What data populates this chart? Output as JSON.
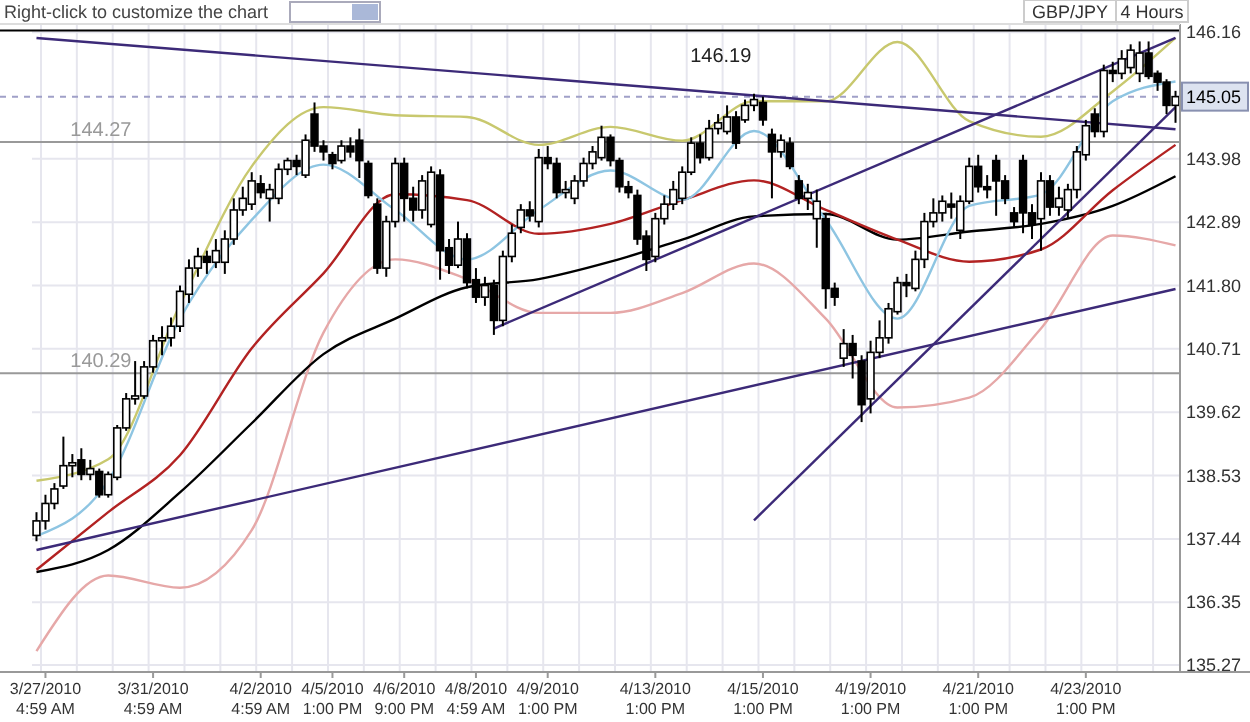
{
  "chart_data": {
    "type": "candlestick",
    "title": "GBP/JPY",
    "subtitle": "4 Hours",
    "annotations": [
      "Right-click to customize the chart"
    ],
    "categories": [
      null,
      "3/27/2010 4:59 AM",
      null,
      null,
      null,
      null,
      null,
      null,
      null,
      null,
      null,
      null,
      null,
      "3/31/2010 4:59 AM",
      null,
      null,
      null,
      null,
      null,
      null,
      null,
      null,
      null,
      null,
      null,
      "4/2/2010 4:59 AM",
      null,
      null,
      null,
      null,
      null,
      null,
      null,
      "4/5/2010 1:00 PM",
      null,
      null,
      null,
      null,
      null,
      null,
      null,
      "4/6/2010 9:00 PM",
      null,
      null,
      null,
      null,
      null,
      null,
      null,
      "4/8/2010 4:59 AM",
      null,
      null,
      null,
      null,
      null,
      null,
      null,
      "4/9/2010 1:00 PM",
      null,
      null,
      null,
      null,
      null,
      null,
      null,
      null,
      null,
      null,
      null,
      "4/13/2010 1:00 PM",
      null,
      null,
      null,
      null,
      null,
      null,
      null,
      null,
      null,
      null,
      null,
      "4/15/2010 1:00 PM",
      null,
      null,
      null,
      null,
      null,
      null,
      null,
      null,
      null,
      null,
      null,
      "4/19/2010 1:00 PM",
      null,
      null,
      null,
      null,
      null,
      null,
      null,
      null,
      null,
      null,
      null,
      "4/21/2010 1:00 PM",
      null,
      null,
      null,
      null,
      null,
      null,
      null,
      null,
      null,
      null,
      null,
      "4/23/2010 1:00 PM",
      null,
      null,
      null,
      null,
      null,
      null,
      null,
      null,
      null,
      null
    ],
    "ohlc": [
      [
        137.5,
        137.9,
        137.4,
        137.75
      ],
      [
        137.75,
        138.2,
        137.6,
        138.05
      ],
      [
        138.05,
        138.4,
        137.95,
        138.3
      ],
      [
        138.35,
        139.2,
        138.3,
        138.7
      ],
      [
        138.7,
        138.9,
        138.5,
        138.75
      ],
      [
        138.8,
        139.0,
        138.45,
        138.55
      ],
      [
        138.55,
        138.8,
        138.45,
        138.65
      ],
      [
        138.6,
        138.65,
        138.15,
        138.2
      ],
      [
        138.2,
        138.6,
        138.15,
        138.55
      ],
      [
        138.5,
        139.4,
        138.45,
        139.35
      ],
      [
        139.35,
        139.95,
        139.3,
        139.85
      ],
      [
        139.85,
        140.5,
        139.75,
        139.9
      ],
      [
        139.9,
        140.5,
        139.85,
        140.4
      ],
      [
        140.4,
        140.95,
        140.3,
        140.85
      ],
      [
        140.85,
        141.1,
        140.6,
        140.9
      ],
      [
        140.9,
        141.25,
        140.75,
        141.1
      ],
      [
        141.1,
        141.8,
        141.0,
        141.7
      ],
      [
        141.65,
        142.25,
        141.5,
        142.1
      ],
      [
        142.1,
        142.45,
        141.95,
        142.3
      ],
      [
        142.3,
        142.4,
        142.0,
        142.2
      ],
      [
        142.2,
        142.6,
        142.1,
        142.4
      ],
      [
        142.2,
        142.75,
        142.0,
        142.6
      ],
      [
        142.6,
        143.3,
        142.5,
        143.1
      ],
      [
        143.1,
        143.5,
        143.0,
        143.3
      ],
      [
        143.2,
        143.75,
        143.1,
        143.6
      ],
      [
        143.55,
        143.7,
        143.3,
        143.4
      ],
      [
        143.3,
        143.55,
        142.9,
        143.45
      ],
      [
        143.3,
        143.9,
        143.2,
        143.8
      ],
      [
        143.8,
        144.0,
        143.7,
        143.95
      ],
      [
        143.95,
        144.05,
        143.7,
        143.85
      ],
      [
        143.7,
        144.4,
        143.65,
        144.3
      ],
      [
        144.75,
        144.95,
        144.1,
        144.2
      ],
      [
        144.2,
        144.3,
        143.95,
        144.1
      ],
      [
        144.05,
        144.1,
        143.8,
        143.9
      ],
      [
        143.95,
        144.3,
        143.9,
        144.2
      ],
      [
        144.2,
        144.35,
        144.0,
        144.1
      ],
      [
        144.3,
        144.5,
        143.65,
        143.95
      ],
      [
        143.9,
        143.95,
        143.3,
        143.35
      ],
      [
        143.2,
        143.3,
        142.0,
        142.1
      ],
      [
        142.1,
        143.0,
        141.95,
        142.9
      ],
      [
        142.9,
        144.0,
        142.8,
        143.9
      ],
      [
        143.9,
        144.0,
        142.9,
        143.3
      ],
      [
        143.3,
        143.5,
        142.9,
        143.1
      ],
      [
        143.1,
        143.7,
        142.95,
        143.6
      ],
      [
        142.85,
        143.85,
        142.8,
        143.75
      ],
      [
        143.7,
        143.8,
        141.9,
        142.4
      ],
      [
        142.45,
        142.6,
        142.0,
        142.15
      ],
      [
        142.15,
        142.9,
        142.1,
        142.6
      ],
      [
        142.6,
        142.7,
        141.75,
        141.85
      ],
      [
        141.9,
        142.1,
        141.5,
        141.6
      ],
      [
        141.6,
        141.95,
        141.45,
        141.8
      ],
      [
        141.8,
        141.9,
        140.95,
        141.2
      ],
      [
        141.2,
        142.4,
        141.1,
        142.3
      ],
      [
        142.3,
        142.85,
        142.2,
        142.7
      ],
      [
        142.8,
        143.2,
        142.7,
        143.1
      ],
      [
        143.1,
        143.25,
        142.9,
        143.0
      ],
      [
        142.9,
        144.15,
        142.8,
        144.0
      ],
      [
        144.0,
        144.2,
        143.8,
        143.9
      ],
      [
        143.9,
        144.0,
        143.3,
        143.4
      ],
      [
        143.4,
        143.6,
        143.3,
        143.45
      ],
      [
        143.3,
        143.7,
        143.2,
        143.6
      ],
      [
        143.6,
        144.0,
        143.5,
        143.9
      ],
      [
        143.9,
        144.2,
        143.8,
        144.1
      ],
      [
        144.0,
        144.55,
        143.95,
        144.35
      ],
      [
        144.35,
        144.4,
        143.85,
        143.95
      ],
      [
        143.95,
        144.0,
        143.4,
        143.5
      ],
      [
        143.5,
        143.6,
        143.3,
        143.4
      ],
      [
        143.35,
        143.45,
        142.5,
        142.6
      ],
      [
        142.65,
        142.75,
        142.05,
        142.25
      ],
      [
        142.3,
        143.05,
        142.2,
        142.95
      ],
      [
        142.95,
        143.35,
        142.85,
        143.2
      ],
      [
        143.2,
        143.6,
        143.1,
        143.45
      ],
      [
        143.3,
        143.85,
        143.2,
        143.75
      ],
      [
        143.75,
        144.35,
        143.7,
        144.25
      ],
      [
        144.25,
        144.4,
        143.9,
        144.0
      ],
      [
        144.0,
        144.65,
        143.95,
        144.5
      ],
      [
        144.5,
        144.75,
        144.4,
        144.6
      ],
      [
        144.45,
        144.9,
        144.4,
        144.7
      ],
      [
        144.7,
        144.8,
        144.15,
        144.25
      ],
      [
        144.65,
        145.0,
        144.6,
        144.9
      ],
      [
        144.9,
        145.1,
        144.8,
        145.0
      ],
      [
        144.95,
        145.05,
        144.55,
        144.65
      ],
      [
        144.4,
        144.5,
        143.3,
        144.1
      ],
      [
        144.1,
        144.4,
        144.0,
        144.3
      ],
      [
        144.25,
        144.35,
        143.8,
        143.85
      ],
      [
        143.6,
        143.7,
        143.2,
        143.3
      ],
      [
        143.3,
        143.55,
        143.1,
        143.4
      ],
      [
        142.95,
        143.45,
        142.45,
        143.25
      ],
      [
        142.95,
        143.05,
        141.4,
        141.75
      ],
      [
        141.75,
        141.85,
        141.45,
        141.6
      ],
      [
        140.55,
        141.05,
        140.4,
        140.8
      ],
      [
        140.8,
        140.95,
        140.2,
        140.6
      ],
      [
        140.5,
        140.6,
        139.45,
        139.75
      ],
      [
        139.85,
        140.85,
        139.6,
        140.65
      ],
      [
        140.65,
        141.2,
        140.55,
        140.9
      ],
      [
        140.9,
        141.5,
        140.8,
        141.4
      ],
      [
        141.35,
        141.95,
        141.3,
        141.85
      ],
      [
        141.85,
        142.0,
        141.6,
        141.8
      ],
      [
        141.75,
        142.4,
        141.7,
        142.25
      ],
      [
        142.25,
        143.05,
        142.1,
        142.9
      ],
      [
        142.9,
        143.3,
        142.8,
        143.05
      ],
      [
        143.05,
        143.35,
        142.9,
        143.25
      ],
      [
        143.2,
        143.4,
        142.95,
        143.15
      ],
      [
        142.75,
        143.35,
        142.6,
        143.25
      ],
      [
        143.25,
        144.0,
        143.2,
        143.85
      ],
      [
        143.85,
        144.05,
        143.4,
        143.5
      ],
      [
        143.5,
        143.7,
        143.3,
        143.45
      ],
      [
        143.95,
        144.05,
        143.0,
        143.6
      ],
      [
        143.6,
        143.7,
        143.2,
        143.3
      ],
      [
        143.05,
        143.15,
        142.8,
        142.9
      ],
      [
        143.95,
        144.05,
        142.7,
        143.05
      ],
      [
        143.05,
        143.2,
        142.6,
        142.85
      ],
      [
        142.95,
        143.75,
        142.4,
        143.6
      ],
      [
        143.6,
        143.7,
        143.0,
        143.15
      ],
      [
        143.15,
        143.5,
        143.0,
        143.3
      ],
      [
        143.1,
        143.55,
        142.95,
        143.45
      ],
      [
        143.45,
        144.2,
        143.3,
        144.1
      ],
      [
        144.05,
        144.65,
        143.95,
        144.55
      ],
      [
        144.75,
        144.85,
        144.35,
        144.45
      ],
      [
        144.45,
        145.6,
        144.35,
        145.5
      ],
      [
        145.5,
        145.65,
        145.3,
        145.45
      ],
      [
        145.45,
        145.85,
        145.35,
        145.7
      ],
      [
        145.55,
        145.95,
        145.45,
        145.85
      ],
      [
        145.45,
        146.0,
        145.3,
        145.8
      ],
      [
        145.8,
        146.0,
        145.35,
        145.4
      ],
      [
        145.45,
        145.5,
        145.15,
        145.3
      ],
      [
        145.3,
        145.35,
        144.75,
        144.9
      ],
      [
        144.9,
        145.15,
        144.6,
        145.05
      ]
    ],
    "series": [
      {
        "type": "line",
        "color": "#e6a8a8",
        "values": [
          135.51,
          null,
          null,
          null,
          null,
          null,
          null,
          null,
          136.81,
          null,
          null,
          null,
          null,
          null,
          null,
          null,
          136.6,
          null,
          null,
          null,
          null,
          null,
          null,
          null,
          137.59,
          null,
          null,
          null,
          null,
          null,
          null,
          null,
          140.99,
          null,
          null,
          null,
          null,
          null,
          null,
          null,
          142.25,
          null,
          null,
          null,
          null,
          null,
          null,
          null,
          141.91,
          null,
          null,
          null,
          null,
          null,
          null,
          null,
          141.33,
          null,
          null,
          null,
          null,
          null,
          null,
          null,
          141.33,
          null,
          null,
          null,
          null,
          null,
          null,
          null,
          141.67,
          null,
          null,
          null,
          null,
          null,
          null,
          null,
          142.18,
          null,
          null,
          null,
          null,
          null,
          null,
          null,
          141.23,
          null,
          null,
          null,
          null,
          null,
          null,
          null,
          139.7,
          null,
          null,
          null,
          null,
          null,
          null,
          null,
          139.87,
          null,
          null,
          null,
          null,
          null,
          null,
          null,
          141.06,
          null,
          null,
          null,
          null,
          null,
          null,
          null,
          142.66,
          null,
          null,
          null,
          null,
          null,
          null,
          142.49
        ]
      },
      {
        "type": "line",
        "color": "#c8c86e",
        "values": [
          138.44,
          null,
          null,
          null,
          null,
          null,
          null,
          null,
          138.81,
          null,
          null,
          null,
          null,
          null,
          null,
          null,
          141.47,
          null,
          null,
          null,
          null,
          null,
          null,
          null,
          143.85,
          null,
          null,
          null,
          null,
          null,
          null,
          null,
          144.87,
          null,
          null,
          null,
          null,
          null,
          null,
          null,
          144.73,
          null,
          null,
          null,
          null,
          null,
          null,
          null,
          144.7,
          null,
          null,
          null,
          null,
          null,
          null,
          null,
          144.22,
          null,
          null,
          null,
          null,
          null,
          null,
          null,
          144.53,
          null,
          null,
          null,
          null,
          null,
          null,
          null,
          144.29,
          null,
          null,
          null,
          null,
          null,
          null,
          null,
          144.97,
          null,
          null,
          null,
          null,
          null,
          null,
          null,
          144.97,
          null,
          null,
          null,
          null,
          null,
          null,
          null,
          145.99,
          null,
          null,
          null,
          null,
          null,
          null,
          null,
          144.63,
          null,
          null,
          null,
          null,
          null,
          null,
          null,
          144.36,
          null,
          null,
          null,
          null,
          null,
          null,
          null,
          145.14,
          null,
          null,
          null,
          null,
          null,
          null,
          146.06
        ]
      },
      {
        "type": "line",
        "color": "#000000",
        "values": [
          136.87,
          null,
          null,
          null,
          null,
          null,
          null,
          null,
          137.25,
          null,
          null,
          null,
          null,
          null,
          null,
          null,
          138.24,
          null,
          null,
          null,
          null,
          null,
          null,
          null,
          139.43,
          null,
          null,
          null,
          null,
          null,
          null,
          null,
          140.62,
          null,
          null,
          null,
          null,
          null,
          null,
          null,
          141.23,
          null,
          null,
          null,
          null,
          null,
          null,
          null,
          141.77,
          null,
          null,
          null,
          null,
          null,
          null,
          null,
          141.91,
          null,
          null,
          null,
          null,
          null,
          null,
          null,
          142.21,
          null,
          null,
          null,
          null,
          null,
          null,
          null,
          142.59,
          null,
          null,
          null,
          null,
          null,
          null,
          null,
          142.99,
          null,
          null,
          null,
          null,
          null,
          null,
          null,
          143.03,
          null,
          null,
          null,
          null,
          null,
          null,
          null,
          142.59,
          null,
          null,
          null,
          null,
          null,
          null,
          null,
          142.73,
          null,
          null,
          null,
          null,
          null,
          null,
          null,
          142.86,
          null,
          null,
          null,
          null,
          null,
          null,
          null,
          143.17,
          null,
          null,
          null,
          null,
          null,
          null,
          143.68
        ]
      },
      {
        "type": "line",
        "color": "#b22222",
        "values": [
          136.91,
          null,
          null,
          null,
          null,
          null,
          null,
          null,
          137.9,
          null,
          null,
          null,
          null,
          null,
          null,
          null,
          138.88,
          null,
          null,
          null,
          null,
          null,
          null,
          null,
          140.72,
          null,
          null,
          null,
          null,
          null,
          null,
          null,
          142.01,
          null,
          null,
          null,
          null,
          null,
          null,
          null,
          143.37,
          null,
          null,
          null,
          null,
          null,
          null,
          null,
          143.27,
          null,
          null,
          null,
          null,
          null,
          null,
          null,
          142.69,
          null,
          null,
          null,
          null,
          null,
          null,
          null,
          142.86,
          null,
          null,
          null,
          null,
          null,
          null,
          null,
          143.27,
          null,
          null,
          null,
          null,
          null,
          null,
          null,
          143.61,
          null,
          null,
          null,
          null,
          null,
          null,
          null,
          143.1,
          null,
          null,
          null,
          null,
          null,
          null,
          null,
          142.59,
          null,
          null,
          null,
          null,
          null,
          null,
          null,
          142.21,
          null,
          null,
          null,
          null,
          null,
          null,
          null,
          142.42,
          null,
          null,
          null,
          null,
          null,
          null,
          null,
          143.44,
          null,
          null,
          null,
          null,
          null,
          null,
          144.22
        ]
      },
      {
        "type": "line",
        "color": "#8ec5e2",
        "values": [
          137.49,
          null,
          null,
          null,
          null,
          null,
          null,
          null,
          138.44,
          null,
          null,
          null,
          null,
          null,
          null,
          null,
          141.23,
          null,
          null,
          null,
          null,
          null,
          null,
          null,
          142.93,
          null,
          null,
          null,
          null,
          null,
          null,
          null,
          143.88,
          null,
          null,
          null,
          null,
          null,
          null,
          null,
          143.1,
          null,
          null,
          null,
          null,
          null,
          null,
          null,
          142.25,
          null,
          null,
          null,
          null,
          null,
          null,
          null,
          143.1,
          null,
          null,
          null,
          null,
          null,
          null,
          null,
          143.78,
          null,
          null,
          null,
          null,
          null,
          null,
          null,
          143.27,
          null,
          null,
          null,
          null,
          null,
          null,
          null,
          144.46,
          null,
          null,
          null,
          null,
          null,
          null,
          null,
          142.93,
          null,
          null,
          null,
          null,
          null,
          null,
          null,
          141.23,
          null,
          null,
          null,
          null,
          null,
          null,
          null,
          143.17,
          null,
          null,
          null,
          null,
          null,
          null,
          null,
          143.37,
          null,
          null,
          null,
          null,
          null,
          null,
          null,
          144.97,
          null,
          null,
          null,
          null,
          null,
          null,
          145.31
        ]
      },
      {
        "type": "line",
        "color": "#3c2a78",
        "values": [
          146.06,
          null,
          null,
          null,
          null,
          null,
          null,
          null,
          null,
          null,
          null,
          null,
          null,
          null,
          null,
          null,
          null,
          null,
          null,
          null,
          null,
          null,
          null,
          null,
          null,
          null,
          null,
          null,
          null,
          null,
          null,
          null,
          null,
          null,
          null,
          null,
          null,
          null,
          null,
          null,
          null,
          null,
          null,
          null,
          null,
          null,
          null,
          null,
          null,
          null,
          null,
          null,
          null,
          null,
          null,
          null,
          null,
          null,
          null,
          null,
          null,
          null,
          null,
          null,
          null,
          null,
          null,
          null,
          null,
          null,
          null,
          null,
          null,
          null,
          null,
          null,
          null,
          null,
          null,
          null,
          null,
          null,
          null,
          null,
          null,
          null,
          null,
          null,
          null,
          null,
          null,
          null,
          null,
          null,
          null,
          null,
          null,
          null,
          null,
          null,
          null,
          null,
          null,
          null,
          null,
          null,
          null,
          null,
          null,
          null,
          null,
          null,
          null,
          null,
          null,
          null,
          null,
          null,
          null,
          null,
          null,
          null,
          null,
          null,
          null,
          null,
          null,
          144.49
        ]
      },
      {
        "type": "line",
        "color": "#3c2a78",
        "values": [
          137.25,
          null,
          null,
          null,
          null,
          null,
          null,
          null,
          null,
          null,
          null,
          null,
          null,
          null,
          null,
          null,
          null,
          null,
          null,
          null,
          null,
          null,
          null,
          null,
          null,
          null,
          null,
          null,
          null,
          null,
          null,
          null,
          null,
          null,
          null,
          null,
          null,
          null,
          null,
          null,
          null,
          null,
          null,
          null,
          null,
          null,
          null,
          null,
          null,
          null,
          null,
          null,
          null,
          null,
          null,
          null,
          null,
          null,
          null,
          null,
          null,
          null,
          null,
          null,
          null,
          null,
          null,
          null,
          null,
          null,
          null,
          null,
          null,
          null,
          null,
          null,
          null,
          null,
          null,
          null,
          null,
          null,
          null,
          null,
          null,
          null,
          null,
          null,
          null,
          null,
          null,
          null,
          null,
          null,
          null,
          null,
          null,
          null,
          null,
          null,
          null,
          null,
          null,
          null,
          null,
          null,
          null,
          null,
          null,
          null,
          null,
          null,
          null,
          null,
          null,
          null,
          null,
          null,
          null,
          null,
          null,
          null,
          null,
          null,
          null,
          null,
          null,
          141.74
        ]
      },
      {
        "type": "line",
        "color": "#3c2a78",
        "values": [
          null,
          null,
          null,
          null,
          null,
          null,
          null,
          null,
          null,
          null,
          null,
          null,
          null,
          null,
          null,
          null,
          null,
          null,
          null,
          null,
          null,
          null,
          null,
          null,
          null,
          null,
          null,
          null,
          null,
          null,
          null,
          null,
          null,
          null,
          null,
          null,
          null,
          null,
          null,
          null,
          null,
          null,
          null,
          null,
          null,
          null,
          null,
          null,
          null,
          null,
          null,
          141.06,
          null,
          null,
          null,
          null,
          null,
          null,
          null,
          null,
          null,
          null,
          null,
          null,
          null,
          null,
          null,
          null,
          null,
          null,
          null,
          null,
          null,
          null,
          null,
          null,
          null,
          null,
          null,
          null,
          null,
          null,
          null,
          null,
          null,
          null,
          null,
          null,
          null,
          null,
          null,
          null,
          null,
          null,
          null,
          null,
          null,
          null,
          null,
          null,
          null,
          null,
          null,
          null,
          null,
          null,
          null,
          null,
          null,
          null,
          null,
          null,
          null,
          null,
          null,
          null,
          null,
          null,
          null,
          null,
          null,
          null,
          null,
          null,
          null,
          null,
          null,
          146.06
        ]
      },
      {
        "type": "line",
        "color": "#3c2a78",
        "values": [
          null,
          null,
          null,
          null,
          null,
          null,
          null,
          null,
          null,
          null,
          null,
          null,
          null,
          null,
          null,
          null,
          null,
          null,
          null,
          null,
          null,
          null,
          null,
          null,
          null,
          null,
          null,
          null,
          null,
          null,
          null,
          null,
          null,
          null,
          null,
          null,
          null,
          null,
          null,
          null,
          null,
          null,
          null,
          null,
          null,
          null,
          null,
          null,
          null,
          null,
          null,
          null,
          null,
          null,
          null,
          null,
          null,
          null,
          null,
          null,
          null,
          null,
          null,
          null,
          null,
          null,
          null,
          null,
          null,
          null,
          null,
          null,
          null,
          null,
          null,
          null,
          null,
          null,
          null,
          null,
          137.76,
          null,
          null,
          null,
          null,
          null,
          null,
          null,
          null,
          null,
          null,
          null,
          null,
          null,
          null,
          null,
          null,
          null,
          null,
          null,
          null,
          null,
          null,
          null,
          null,
          null,
          null,
          null,
          null,
          null,
          null,
          null,
          null,
          null,
          null,
          null,
          null,
          null,
          null,
          null,
          null,
          null,
          null,
          null,
          null,
          null,
          null,
          144.87
        ]
      }
    ],
    "ylim": [
      135.15,
      146.3
    ],
    "yticks": [
      146.16,
      {
        "value": 143.98,
        "label": "143.98"
      },
      142.89,
      {
        "value": 141.8,
        "label": "141.80"
      },
      140.71,
      139.62,
      138.53,
      137.44,
      136.35,
      135.27
    ],
    "ref_lines": [
      {
        "axis": "y",
        "value": 146.19,
        "label": "146.19",
        "color": "#000000",
        "line_style": "solid"
      },
      {
        "axis": "y",
        "value": 144.27,
        "label": "144.27",
        "color": "#999999",
        "line_style": "solid"
      },
      {
        "axis": "y",
        "value": 140.29,
        "label": "140.29",
        "color": "#999999",
        "line_style": "solid"
      },
      {
        "axis": "y",
        "value": 145.05,
        "label": "145.05",
        "color": "#a0a0c8",
        "line_style": "dashed"
      }
    ],
    "grid": true
  }
}
